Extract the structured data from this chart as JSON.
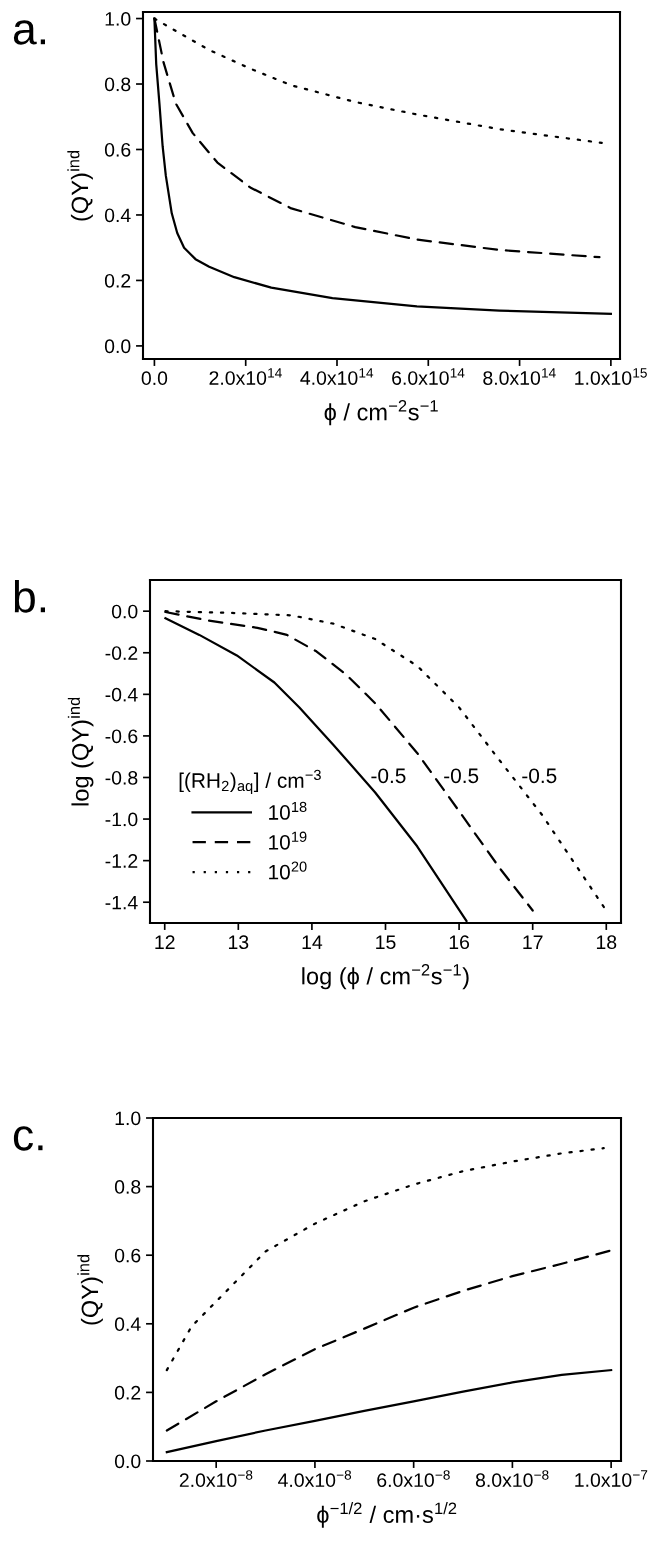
{
  "chart_data": [
    {
      "type": "line",
      "title": "a.",
      "xlabel": "ϕ / cm$^{−2}$s$^{−1}$",
      "ylabel": "(QY)$^{ind}$",
      "xlim": [
        -25000000000000.0,
        1020000000000000.0
      ],
      "ylim": [
        -0.04,
        1.02
      ],
      "xticks": [
        {
          "value": 0,
          "label": "0.0"
        },
        {
          "value": 200000000000000.0,
          "label": "2.0x10$^{14}$"
        },
        {
          "value": 400000000000000.0,
          "label": "4.0x10$^{14}$"
        },
        {
          "value": 600000000000000.0,
          "label": "6.0x10$^{14}$"
        },
        {
          "value": 800000000000000.0,
          "label": "8.0x10$^{14}$"
        },
        {
          "value": 1000000000000000.0,
          "label": "1.0x10$^{15}$"
        }
      ],
      "yticks": [
        {
          "value": 0,
          "label": "0.0"
        },
        {
          "value": 0.2,
          "label": "0.2"
        },
        {
          "value": 0.4,
          "label": "0.4"
        },
        {
          "value": 0.6,
          "label": "0.6"
        },
        {
          "value": 0.8,
          "label": "0.8"
        },
        {
          "value": 1.0,
          "label": "1.0"
        }
      ],
      "grid": false,
      "legend": false,
      "series": [
        {
          "color": "#000000",
          "line_style": "solid",
          "x": [
            0,
            4000000000000.0,
            11000000000000.0,
            18000000000000.0,
            25000000000000.0,
            38000000000000.0,
            50000000000000.0,
            65000000000000.0,
            90000000000000.0,
            120000000000000.0,
            175000000000000.0,
            256000000000000.0,
            390000000000000.0,
            575000000000000.0,
            756000000000000.0,
            1000000000000000.0
          ],
          "values": [
            1.0,
            0.86,
            0.74,
            0.61,
            0.52,
            0.405,
            0.345,
            0.3,
            0.265,
            0.242,
            0.21,
            0.178,
            0.146,
            0.121,
            0.108,
            0.098
          ]
        },
        {
          "color": "#000000",
          "line_style": "dashed",
          "x": [
            0,
            20000000000000.0,
            47000000000000.0,
            84000000000000.0,
            138000000000000.0,
            210000000000000.0,
            300000000000000.0,
            440000000000000.0,
            575000000000000.0,
            756000000000000.0,
            975000000000000.0
          ],
          "values": [
            1.0,
            0.866,
            0.74,
            0.65,
            0.56,
            0.484,
            0.42,
            0.363,
            0.325,
            0.293,
            0.271
          ]
        },
        {
          "color": "#000000",
          "line_style": "dotted",
          "x": [
            0,
            47000000000000.0,
            120000000000000.0,
            210000000000000.0,
            300000000000000.0,
            440000000000000.0,
            575000000000000.0,
            756000000000000.0,
            980000000000000.0
          ],
          "values": [
            1.0,
            0.962,
            0.904,
            0.847,
            0.796,
            0.745,
            0.707,
            0.662,
            0.62
          ]
        }
      ]
    },
    {
      "type": "line",
      "title": "b.",
      "xlabel": "log (ϕ / cm$^{−2}$s$^{−1}$)",
      "ylabel": "log (QY)$^{ind}$",
      "xlim": [
        11.8,
        18.2
      ],
      "ylim": [
        -1.5,
        0.15
      ],
      "xticks": [
        12,
        13,
        14,
        15,
        16,
        17,
        18
      ],
      "yticks": [
        {
          "value": 0,
          "label": "0.0"
        },
        {
          "value": -0.2,
          "label": "-0.2"
        },
        {
          "value": -0.4,
          "label": "-0.4"
        },
        {
          "value": -0.6,
          "label": "-0.6"
        },
        {
          "value": -0.8,
          "label": "-0.8"
        },
        {
          "value": -1.0,
          "label": "-1.0"
        },
        {
          "value": -1.2,
          "label": "-1.2"
        },
        {
          "value": -1.4,
          "label": "-1.4"
        }
      ],
      "grid": false,
      "legend": "bottom left",
      "legend_title": "[(RH$_{2}$)$_{aq}$] / cm$^{−3}$",
      "annotations": [
        "-0.5",
        "-0.5",
        "-0.5"
      ],
      "series": [
        {
          "name": "10$^{18}$",
          "color": "#000000",
          "line_style": "solid",
          "x": [
            12.01,
            12.47,
            12.98,
            13.49,
            13.83,
            14.29,
            14.86,
            15.43,
            16.1
          ],
          "values": [
            -0.034,
            -0.114,
            -0.213,
            -0.343,
            -0.463,
            -0.642,
            -0.872,
            -1.131,
            -1.49
          ]
        },
        {
          "name": "10$^{19}$",
          "color": "#000000",
          "line_style": "dashed",
          "x": [
            12.01,
            12.58,
            13.26,
            13.66,
            14.06,
            14.46,
            14.86,
            15.43,
            16.0,
            16.56,
            17.0
          ],
          "values": [
            -0.004,
            -0.044,
            -0.08,
            -0.114,
            -0.193,
            -0.303,
            -0.443,
            -0.682,
            -0.962,
            -1.24,
            -1.44
          ]
        },
        {
          "name": "10$^{20}$",
          "color": "#000000",
          "line_style": "dotted",
          "x": [
            12.01,
            12.87,
            13.72,
            14.29,
            14.86,
            15.43,
            16.0,
            16.56,
            17.13,
            17.98
          ],
          "values": [
            0.0,
            -0.008,
            -0.02,
            -0.06,
            -0.134,
            -0.263,
            -0.463,
            -0.722,
            -0.981,
            -1.43
          ]
        }
      ]
    },
    {
      "type": "line",
      "title": "c.",
      "xlabel": "ϕ$^{−1/2}$ / cm·s$^{1/2}$",
      "ylabel": "(QY)$^{ind}$",
      "xlim": [
        7.2e-09,
        1.02e-07
      ],
      "ylim": [
        0,
        1.0
      ],
      "xticks": [
        {
          "value": 2e-08,
          "label": "2.0x10$^{−8}$"
        },
        {
          "value": 4e-08,
          "label": "4.0x10$^{−8}$"
        },
        {
          "value": 6e-08,
          "label": "6.0x10$^{−8}$"
        },
        {
          "value": 8e-08,
          "label": "8.0x10$^{−8}$"
        },
        {
          "value": 1e-07,
          "label": "1.0x10$^{−7}$"
        }
      ],
      "yticks": [
        {
          "value": 0,
          "label": "0.0"
        },
        {
          "value": 0.2,
          "label": "0.2"
        },
        {
          "value": 0.4,
          "label": "0.4"
        },
        {
          "value": 0.6,
          "label": "0.6"
        },
        {
          "value": 0.8,
          "label": "0.8"
        },
        {
          "value": 1.0,
          "label": "1.0"
        }
      ],
      "grid": false,
      "legend": false,
      "series": [
        {
          "color": "#000000",
          "line_style": "solid",
          "x": [
            1e-08,
            2e-08,
            3e-08,
            4e-08,
            5e-08,
            6e-08,
            7e-08,
            8e-08,
            9e-08,
            1e-07
          ],
          "values": [
            0.026,
            0.058,
            0.089,
            0.117,
            0.146,
            0.174,
            0.202,
            0.229,
            0.251,
            0.265
          ]
        },
        {
          "color": "#000000",
          "line_style": "dashed",
          "x": [
            1e-08,
            2e-08,
            3e-08,
            4e-08,
            5e-08,
            6e-08,
            7e-08,
            8e-08,
            9e-08,
            1e-07
          ],
          "values": [
            0.089,
            0.174,
            0.253,
            0.326,
            0.386,
            0.447,
            0.496,
            0.539,
            0.575,
            0.614
          ]
        },
        {
          "color": "#000000",
          "line_style": "dotted",
          "x": [
            1e-08,
            1.5e-08,
            2e-08,
            3e-08,
            4e-08,
            5e-08,
            6e-08,
            7e-08,
            8e-08,
            9e-08,
            9.85e-08
          ],
          "values": [
            0.265,
            0.392,
            0.465,
            0.611,
            0.692,
            0.757,
            0.806,
            0.845,
            0.873,
            0.897,
            0.912
          ]
        }
      ]
    }
  ]
}
